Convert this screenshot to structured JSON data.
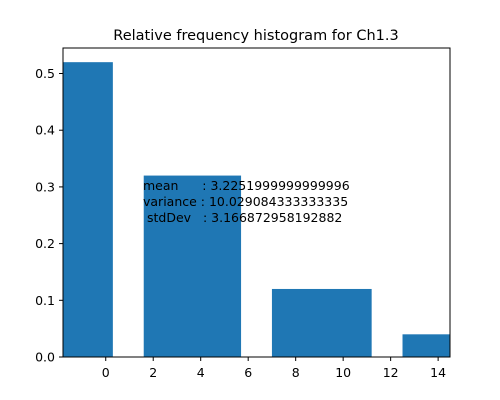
{
  "chart_data": {
    "type": "bar",
    "title": "Relative frequency histogram for Ch1.3",
    "xlabel": "",
    "ylabel": "",
    "xlim": [
      -1.8,
      14.5
    ],
    "ylim": [
      0,
      0.545
    ],
    "grid": false,
    "bars": [
      {
        "x_start": -1.8,
        "x_end": 0.3,
        "value": 0.52
      },
      {
        "x_start": 1.6,
        "x_end": 5.7,
        "value": 0.32
      },
      {
        "x_start": 7.0,
        "x_end": 11.2,
        "value": 0.12
      },
      {
        "x_start": 12.5,
        "x_end": 14.5,
        "value": 0.04
      }
    ],
    "bar_color": "#1f77b4",
    "x_ticks": [
      {
        "value": 0,
        "label": "0"
      },
      {
        "value": 2,
        "label": "2"
      },
      {
        "value": 4,
        "label": "4"
      },
      {
        "value": 6,
        "label": "6"
      },
      {
        "value": 8,
        "label": "8"
      },
      {
        "value": 10,
        "label": "10"
      },
      {
        "value": 12,
        "label": "12"
      },
      {
        "value": 14,
        "label": "14"
      }
    ],
    "y_ticks": [
      {
        "value": 0.0,
        "label": "0.0"
      },
      {
        "value": 0.1,
        "label": "0.1"
      },
      {
        "value": 0.2,
        "label": "0.2"
      },
      {
        "value": 0.3,
        "label": "0.3"
      },
      {
        "value": 0.4,
        "label": "0.4"
      },
      {
        "value": 0.5,
        "label": "0.5"
      }
    ],
    "annotation": {
      "lines": [
        "mean      : 3.2251999999999996",
        "variance : 10.029084333333335",
        " stdDev   : 3.166872958192882"
      ]
    }
  }
}
